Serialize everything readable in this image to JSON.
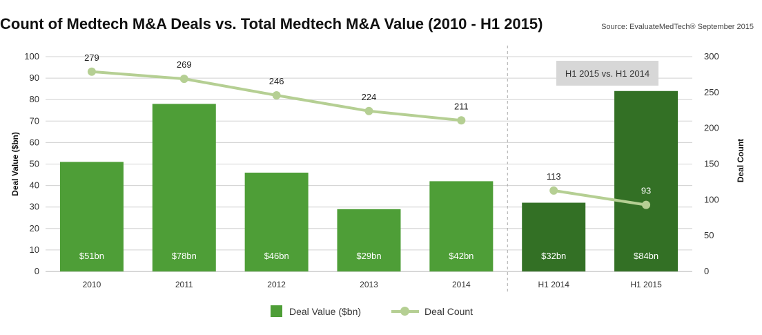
{
  "header": {
    "title": "Count of Medtech M&A Deals vs. Total Medtech M&A Value (2010 - H1 2015)",
    "source": "Source: EvaluateMedTech® September 2015"
  },
  "colors": {
    "bar_annual": "#4e9e37",
    "bar_half": "#337025",
    "line": "#b5cf93",
    "annotation_box": "#d7d7d7",
    "grid": "#d0d0d0"
  },
  "chart_data": {
    "type": "bar",
    "title": "Count of Medtech M&A Deals vs. Total Medtech M&A Value (2010 - H1 2015)",
    "categories": [
      "2010",
      "2011",
      "2012",
      "2013",
      "2014",
      "H1 2014",
      "H1 2015"
    ],
    "series": [
      {
        "name": "Deal Value ($bn)",
        "type": "bar",
        "axis": "left",
        "values": [
          51,
          78,
          46,
          29,
          42,
          32,
          84
        ],
        "labels": [
          "$51bn",
          "$78bn",
          "$46bn",
          "$29bn",
          "$42bn",
          "$32bn",
          "$84bn"
        ]
      },
      {
        "name": "Deal Count",
        "type": "line",
        "axis": "right",
        "segments": [
          {
            "categories": [
              "2010",
              "2011",
              "2012",
              "2013",
              "2014"
            ],
            "values": [
              279,
              269,
              246,
              224,
              211
            ]
          },
          {
            "categories": [
              "H1 2014",
              "H1 2015"
            ],
            "values": [
              113,
              93
            ]
          }
        ]
      }
    ],
    "ylabel": "Deal Value ($bn)",
    "ylabel_right": "Deal Count",
    "ylim": [
      0,
      100
    ],
    "ylim_right": [
      0,
      300
    ],
    "yticks": [
      "0",
      "10",
      "20",
      "30",
      "40",
      "50",
      "60",
      "70",
      "80",
      "90",
      "100"
    ],
    "yticks_right": [
      "0",
      "50",
      "100",
      "150",
      "200",
      "250",
      "300"
    ],
    "grid": true,
    "annotation": "H1 2015 vs. H1 2014",
    "legend_position": "bottom"
  }
}
